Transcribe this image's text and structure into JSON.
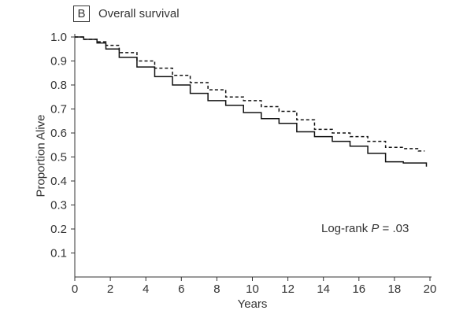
{
  "panel_letter": "B",
  "chart_data": {
    "type": "line",
    "title": "Overall survival",
    "xlabel": "Years",
    "ylabel": "Proportion Alive",
    "xlim": [
      0,
      20
    ],
    "ylim": [
      0,
      1.0
    ],
    "xticks": [
      "0",
      "2",
      "4",
      "6",
      "8",
      "10",
      "12",
      "14",
      "16",
      "18",
      "20"
    ],
    "yticks": [
      "0.1",
      "0.2",
      "0.3",
      "0.4",
      "0.5",
      "0.6",
      "0.7",
      "0.8",
      "0.9",
      "1.0"
    ],
    "annotation": {
      "prefix": "Log-rank ",
      "italic": "P",
      "suffix": " = .03"
    },
    "colors": {
      "line": "#111111",
      "axis": "#333333"
    },
    "series": [
      {
        "style": "dashed",
        "x": [
          0,
          1,
          1.5,
          2,
          3,
          4,
          5,
          6,
          7,
          8,
          9,
          10,
          11,
          12,
          13,
          14,
          15,
          16,
          17,
          18,
          19,
          19.7
        ],
        "y": [
          1.0,
          0.99,
          0.98,
          0.965,
          0.935,
          0.9,
          0.87,
          0.84,
          0.81,
          0.78,
          0.75,
          0.735,
          0.71,
          0.69,
          0.655,
          0.615,
          0.6,
          0.585,
          0.565,
          0.54,
          0.535,
          0.525
        ]
      },
      {
        "style": "solid",
        "x": [
          0,
          1,
          1.5,
          2,
          3,
          4,
          5,
          6,
          7,
          8,
          9,
          10,
          11,
          12,
          13,
          14,
          15,
          16,
          17,
          18,
          19,
          19.8,
          19.8
        ],
        "y": [
          1.0,
          0.99,
          0.975,
          0.95,
          0.915,
          0.875,
          0.835,
          0.8,
          0.765,
          0.735,
          0.715,
          0.685,
          0.66,
          0.64,
          0.605,
          0.585,
          0.565,
          0.545,
          0.515,
          0.48,
          0.475,
          0.475,
          0.46
        ]
      }
    ]
  }
}
